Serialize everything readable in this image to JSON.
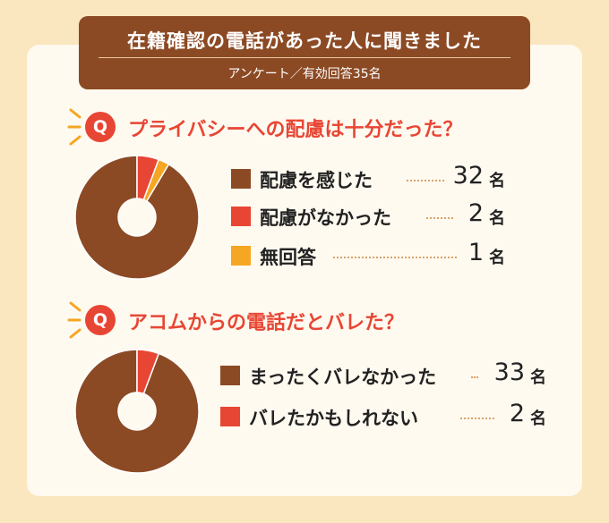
{
  "header": {
    "title": "在籍確認の電話があった人に聞きました",
    "subtitle": "アンケート／有効回答35名"
  },
  "q_badge": "Q",
  "colors": {
    "brown": "#8c4a24",
    "red": "#e84634",
    "orange": "#f5a623",
    "card": "#fffaf0",
    "background": "#fbe7bf"
  },
  "chart_data": [
    {
      "type": "pie",
      "title": "プライバシーへの配慮は十分だった？",
      "categories": [
        "配慮を感じた",
        "配慮がなかった",
        "無回答"
      ],
      "values": [
        32,
        2,
        1
      ],
      "unit": "名",
      "colors": [
        "#8c4a24",
        "#e84634",
        "#f5a623"
      ]
    },
    {
      "type": "pie",
      "title": "アコムからの電話だとバレた？",
      "categories": [
        "まったくバレなかった",
        "バレたかもしれない"
      ],
      "values": [
        33,
        2
      ],
      "unit": "名",
      "colors": [
        "#8c4a24",
        "#e84634"
      ]
    }
  ]
}
